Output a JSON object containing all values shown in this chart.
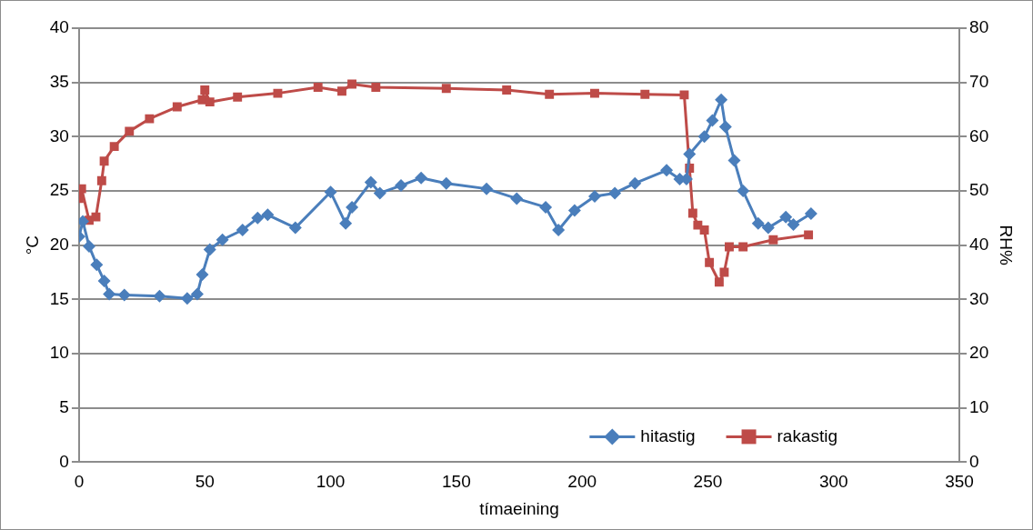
{
  "chart_data": {
    "type": "line",
    "xlabel": "tímaeining",
    "ylabel": "°C",
    "y2label": "RH%",
    "xlim": [
      0,
      350
    ],
    "xticks": [
      0,
      50,
      100,
      150,
      200,
      250,
      300,
      350
    ],
    "ylim": [
      0,
      40
    ],
    "yticks": [
      0,
      5,
      10,
      15,
      20,
      25,
      30,
      35,
      40
    ],
    "y2lim": [
      0,
      80
    ],
    "y2ticks": [
      0,
      10,
      20,
      30,
      40,
      50,
      60,
      70,
      80
    ],
    "grid": "y",
    "legend": "bottom right",
    "series": [
      {
        "name": "hitastig",
        "color": "#4a7ebb",
        "marker": "diamond",
        "x": [
          0,
          1.5,
          4,
          7,
          10,
          12,
          18,
          32,
          43,
          47,
          49,
          52,
          57,
          65,
          71,
          75,
          86,
          100,
          106,
          108.5,
          116,
          119.6,
          128,
          136,
          146,
          162,
          174,
          185.5,
          190.6,
          197,
          205,
          213,
          221,
          233.6,
          238.8,
          241.5,
          242.7,
          248.6,
          251.8,
          255.3,
          257,
          260.5,
          264,
          270,
          274,
          281,
          284,
          291
        ],
        "values": [
          20.8,
          22.2,
          19.9,
          18.2,
          16.7,
          15.5,
          15.4,
          15.3,
          15.1,
          15.5,
          17.3,
          19.6,
          20.5,
          21.4,
          22.5,
          22.8,
          21.6,
          24.9,
          22.0,
          23.5,
          25.8,
          24.8,
          25.5,
          26.2,
          25.7,
          25.2,
          24.3,
          23.5,
          21.4,
          23.2,
          24.5,
          24.8,
          25.7,
          26.9,
          26.1,
          26.1,
          28.4,
          30.0,
          31.5,
          33.4,
          30.9,
          27.8,
          25.0,
          22.0,
          21.6,
          22.6,
          21.9,
          22.9
        ]
      },
      {
        "name": "rakastig",
        "color": "#be4b48",
        "marker": "square",
        "axis": "y2",
        "x": [
          0,
          1,
          4,
          6.7,
          9,
          10,
          14,
          20,
          28,
          39,
          49,
          50,
          52,
          63,
          79,
          95,
          104.5,
          108.5,
          118,
          146,
          170,
          187,
          205,
          225,
          240.6,
          242.7,
          244,
          246,
          248.6,
          250.6,
          254.5,
          256.5,
          258.5,
          264,
          276,
          290
        ],
        "values": [
          48.6,
          50.4,
          44.6,
          45.2,
          51.9,
          55.5,
          58.2,
          61.0,
          63.3,
          65.5,
          66.8,
          68.6,
          66.4,
          67.3,
          68.0,
          69.1,
          68.4,
          69.7,
          69.1,
          68.9,
          68.6,
          67.8,
          68.0,
          67.8,
          67.7,
          54.2,
          45.9,
          43.7,
          42.8,
          36.8,
          33.2,
          35.0,
          39.7,
          39.7,
          41.0,
          41.9
        ]
      }
    ]
  }
}
